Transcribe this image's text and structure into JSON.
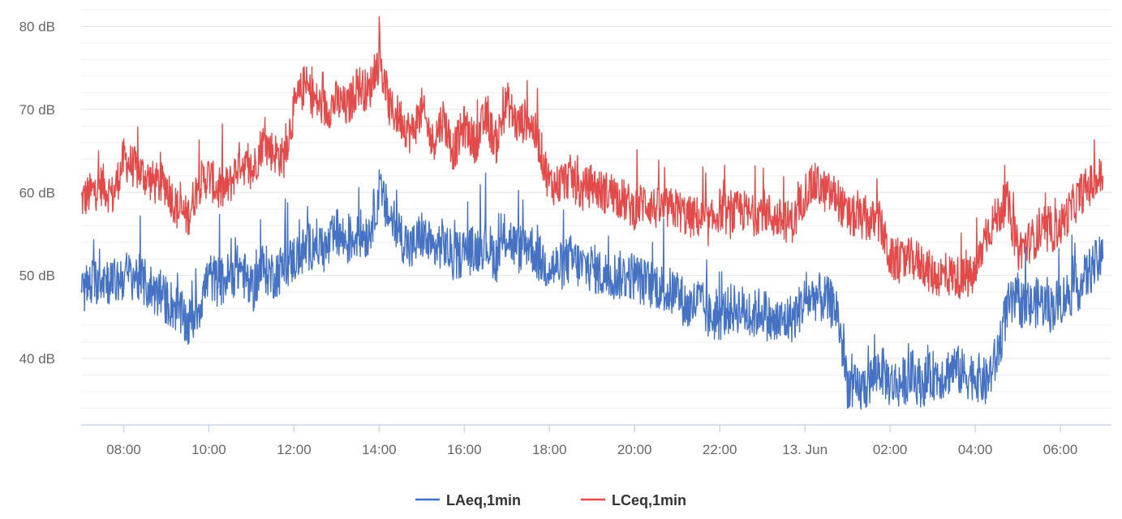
{
  "chart_data": {
    "type": "line",
    "title": "",
    "xlabel": "",
    "ylabel": "",
    "ylim": [
      32,
      82
    ],
    "y_ticks": [
      {
        "value": 40,
        "label": "40 dB"
      },
      {
        "value": 50,
        "label": "50 dB"
      },
      {
        "value": 60,
        "label": "60 dB"
      },
      {
        "value": 70,
        "label": "70 dB"
      },
      {
        "value": 80,
        "label": "80 dB"
      }
    ],
    "x_ticks": [
      {
        "value": 8,
        "label": "08:00"
      },
      {
        "value": 10,
        "label": "10:00"
      },
      {
        "value": 12,
        "label": "12:00"
      },
      {
        "value": 14,
        "label": "14:00"
      },
      {
        "value": 16,
        "label": "16:00"
      },
      {
        "value": 18,
        "label": "18:00"
      },
      {
        "value": 20,
        "label": "20:00"
      },
      {
        "value": 22,
        "label": "22:00"
      },
      {
        "value": 24,
        "label": "13. Jun"
      },
      {
        "value": 26,
        "label": "02:00"
      },
      {
        "value": 28,
        "label": "04:00"
      },
      {
        "value": 30,
        "label": "06:00"
      }
    ],
    "xlim": [
      7,
      31.2
    ],
    "grid": true,
    "legend_position": "bottom-center",
    "series": [
      {
        "name": "LCeq,1min",
        "color": "#e34a4a",
        "x": [
          7.0,
          7.25,
          7.5,
          7.75,
          8.0,
          8.25,
          8.5,
          8.75,
          9.0,
          9.25,
          9.5,
          9.75,
          10.0,
          10.25,
          10.5,
          10.75,
          11.0,
          11.25,
          11.5,
          11.75,
          12.0,
          12.25,
          12.5,
          12.75,
          13.0,
          13.25,
          13.5,
          13.75,
          14.0,
          14.25,
          14.5,
          14.75,
          15.0,
          15.25,
          15.5,
          15.75,
          16.0,
          16.25,
          16.5,
          16.75,
          17.0,
          17.25,
          17.5,
          17.75,
          18.0,
          18.25,
          18.5,
          18.75,
          19.0,
          19.25,
          19.5,
          19.75,
          20.0,
          20.25,
          20.5,
          20.75,
          21.0,
          21.25,
          21.5,
          21.75,
          22.0,
          22.25,
          22.5,
          22.75,
          23.0,
          23.25,
          23.5,
          23.75,
          24.0,
          24.25,
          24.5,
          24.75,
          25.0,
          25.25,
          25.5,
          25.75,
          26.0,
          26.25,
          26.5,
          26.75,
          27.0,
          27.25,
          27.5,
          27.75,
          28.0,
          28.25,
          28.5,
          28.75,
          29.0,
          29.25,
          29.5,
          29.75,
          30.0,
          30.25,
          30.5,
          30.75,
          31.0
        ],
        "y": [
          59,
          60,
          61,
          59.5,
          64,
          63,
          62,
          61,
          61,
          58,
          57,
          61,
          62,
          60,
          61,
          64,
          62,
          66,
          65,
          64,
          70,
          73,
          71,
          70,
          71,
          70,
          73,
          72,
          76,
          70,
          69,
          67,
          70,
          66,
          69,
          65,
          68,
          66,
          69,
          66,
          71,
          68,
          69,
          66,
          61,
          61,
          62,
          60,
          61,
          60,
          60,
          59,
          58,
          59,
          58,
          58,
          58,
          57,
          57,
          56,
          58,
          57,
          58,
          57,
          58,
          57,
          56.5,
          56.5,
          60,
          61,
          60,
          59.5,
          57,
          57,
          56.5,
          56.5,
          52,
          51.5,
          52,
          51.5,
          50,
          50,
          50,
          49.5,
          50,
          55,
          57,
          59,
          53,
          54,
          55,
          55,
          56,
          58,
          60,
          61,
          62
        ]
      },
      {
        "name": "LAeq,1min",
        "color": "#4672c4",
        "x": [
          7.0,
          7.25,
          7.5,
          7.75,
          8.0,
          8.25,
          8.5,
          8.75,
          9.0,
          9.25,
          9.5,
          9.75,
          10.0,
          10.25,
          10.5,
          10.75,
          11.0,
          11.25,
          11.5,
          11.75,
          12.0,
          12.25,
          12.5,
          12.75,
          13.0,
          13.25,
          13.5,
          13.75,
          14.0,
          14.25,
          14.5,
          14.75,
          15.0,
          15.25,
          15.5,
          15.75,
          16.0,
          16.25,
          16.5,
          16.75,
          17.0,
          17.25,
          17.5,
          17.75,
          18.0,
          18.25,
          18.5,
          18.75,
          19.0,
          19.25,
          19.5,
          19.75,
          20.0,
          20.25,
          20.5,
          20.75,
          21.0,
          21.25,
          21.5,
          21.75,
          22.0,
          22.25,
          22.5,
          22.75,
          23.0,
          23.25,
          23.5,
          23.75,
          24.0,
          24.25,
          24.5,
          24.75,
          25.0,
          25.25,
          25.5,
          25.75,
          26.0,
          26.25,
          26.5,
          26.75,
          27.0,
          27.25,
          27.5,
          27.75,
          28.0,
          28.25,
          28.5,
          28.75,
          29.0,
          29.25,
          29.5,
          29.75,
          30.0,
          30.25,
          30.5,
          30.75,
          31.0
        ],
        "y": [
          48,
          49,
          50,
          49,
          50,
          50,
          49,
          48,
          47,
          46,
          44,
          46,
          50,
          49,
          50,
          51,
          48,
          51,
          50,
          51,
          52,
          53,
          54,
          53,
          55,
          54,
          55,
          55,
          60,
          57,
          55,
          53,
          55,
          53,
          54,
          52,
          53,
          53,
          54,
          52,
          55,
          53,
          54,
          52,
          51,
          51,
          52,
          51,
          51,
          50,
          50,
          50,
          50,
          49,
          49,
          48,
          48,
          46,
          47,
          45,
          45,
          46,
          46,
          45,
          46,
          44,
          44.5,
          45,
          47,
          47.5,
          47,
          46,
          37,
          36,
          37,
          39,
          37,
          37,
          38,
          37,
          38,
          38,
          39,
          38,
          38,
          37,
          40,
          46,
          47,
          46,
          47,
          46,
          47,
          48,
          49,
          51,
          52
        ]
      }
    ]
  }
}
